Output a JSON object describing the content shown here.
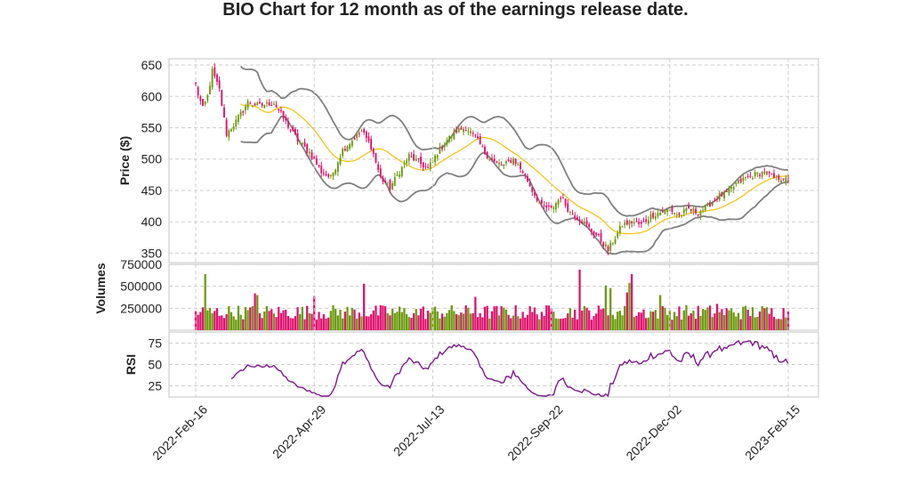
{
  "title": "BIO Chart for 12 month as of the earnings release date.",
  "colors": {
    "up": "#6b9a0c",
    "down": "#e0106d",
    "sma": "#f5c518",
    "bands": "#808080",
    "rsi": "#7b1a8c",
    "grid": "#cfcfcf"
  },
  "chart_data": {
    "type": "candlestick",
    "x_tick_labels": [
      "2022-Feb-16",
      "2022-Apr-29",
      "2022-Jul-13",
      "2022-Sep-22",
      "2022-Dec-02",
      "2023-Feb-15"
    ],
    "price_panel": {
      "ylabel": "Price ($)",
      "ylim": [
        335,
        660
      ],
      "ticks": [
        350,
        400,
        450,
        500,
        550,
        600,
        650
      ],
      "close_anchors": [
        [
          0,
          615
        ],
        [
          3,
          580
        ],
        [
          5,
          600
        ],
        [
          7,
          640
        ],
        [
          10,
          610
        ],
        [
          13,
          540
        ],
        [
          17,
          560
        ],
        [
          22,
          590
        ],
        [
          27,
          585
        ],
        [
          33,
          590
        ],
        [
          37,
          565
        ],
        [
          43,
          530
        ],
        [
          48,
          510
        ],
        [
          53,
          480
        ],
        [
          57,
          470
        ],
        [
          62,
          515
        ],
        [
          66,
          530
        ],
        [
          70,
          545
        ],
        [
          74,
          520
        ],
        [
          78,
          470
        ],
        [
          82,
          455
        ],
        [
          86,
          480
        ],
        [
          90,
          505
        ],
        [
          94,
          495
        ],
        [
          98,
          485
        ],
        [
          102,
          510
        ],
        [
          106,
          530
        ],
        [
          110,
          545
        ],
        [
          114,
          550
        ],
        [
          118,
          535
        ],
        [
          122,
          510
        ],
        [
          126,
          495
        ],
        [
          130,
          490
        ],
        [
          134,
          500
        ],
        [
          138,
          480
        ],
        [
          142,
          450
        ],
        [
          146,
          425
        ],
        [
          150,
          420
        ],
        [
          154,
          440
        ],
        [
          158,
          415
        ],
        [
          162,
          405
        ],
        [
          166,
          390
        ],
        [
          170,
          375
        ],
        [
          174,
          355
        ],
        [
          177,
          375
        ],
        [
          180,
          395
        ],
        [
          184,
          400
        ],
        [
          188,
          395
        ],
        [
          192,
          410
        ],
        [
          196,
          415
        ],
        [
          200,
          420
        ],
        [
          204,
          410
        ],
        [
          208,
          420
        ],
        [
          212,
          415
        ],
        [
          216,
          425
        ],
        [
          220,
          440
        ],
        [
          224,
          445
        ],
        [
          228,
          460
        ],
        [
          232,
          470
        ],
        [
          236,
          475
        ],
        [
          240,
          480
        ],
        [
          244,
          470
        ],
        [
          248,
          470
        ],
        [
          250,
          462
        ]
      ],
      "sma_window": 20,
      "band_width_std": 2
    },
    "volume_panel": {
      "ylabel": "Volumes",
      "ylim": [
        0,
        750000
      ],
      "ticks": [
        250000,
        500000,
        750000
      ],
      "tick_labels": [
        "250000",
        "500000",
        "750000"
      ],
      "spikes": [
        [
          4,
          640000
        ],
        [
          25,
          420000
        ],
        [
          26,
          400000
        ],
        [
          50,
          390000
        ],
        [
          71,
          530000
        ],
        [
          118,
          380000
        ],
        [
          162,
          690000
        ],
        [
          173,
          510000
        ],
        [
          175,
          480000
        ],
        [
          182,
          430000
        ],
        [
          183,
          540000
        ],
        [
          184,
          640000
        ],
        [
          196,
          400000
        ],
        [
          220,
          300000
        ]
      ]
    },
    "rsi_panel": {
      "ylabel": "RSI",
      "ylim": [
        12,
        88
      ],
      "ticks": [
        25,
        50,
        75
      ],
      "period": 14
    },
    "n_sessions": 251
  }
}
